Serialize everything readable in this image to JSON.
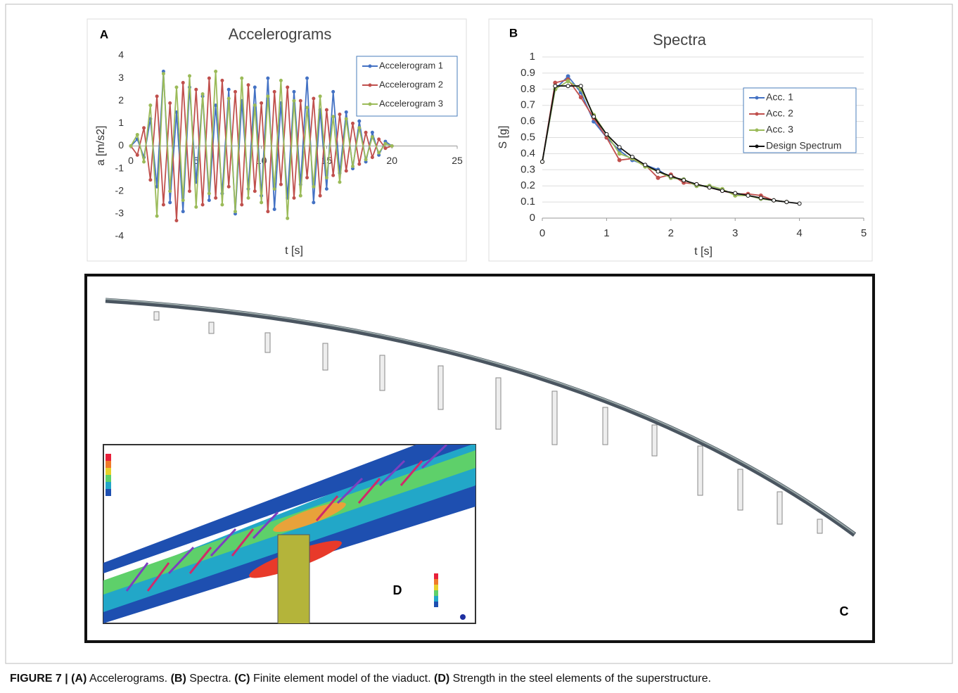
{
  "chart_data": [
    {
      "type": "line",
      "panel": "A",
      "title": "Accelerograms",
      "xlabel": "t    [s]",
      "ylabel": "a  [m/s2]",
      "x": [
        0,
        0.5,
        1,
        1.5,
        2,
        2.5,
        3,
        3.5,
        4,
        4.5,
        5,
        5.5,
        6,
        6.5,
        7,
        7.5,
        8,
        8.5,
        9,
        9.5,
        10,
        10.5,
        11,
        11.5,
        12,
        12.5,
        13,
        13.5,
        14,
        14.5,
        15,
        15.5,
        16,
        16.5,
        17,
        17.5,
        18,
        18.5,
        19,
        19.5,
        20
      ],
      "series": [
        {
          "name": "Accelerogram 1",
          "color": "#4472c4",
          "values": [
            0,
            0.3,
            -0.5,
            1.2,
            -1.8,
            3.3,
            -2.5,
            1.5,
            -2.9,
            2.6,
            -1.6,
            2.2,
            -2.4,
            1.8,
            -2.1,
            2.5,
            -3.0,
            2.0,
            -1.9,
            2.6,
            -2.2,
            3.0,
            -2.8,
            1.9,
            -2.3,
            2.4,
            -1.7,
            3.0,
            -2.5,
            1.6,
            -1.9,
            2.4,
            -1.2,
            1.5,
            -1.0,
            1.1,
            -0.7,
            0.6,
            -0.4,
            0.2,
            0
          ]
        },
        {
          "name": "Accelerogram 2",
          "color": "#c0504d",
          "values": [
            0,
            -0.4,
            0.8,
            -1.5,
            2.2,
            -2.6,
            1.9,
            -3.3,
            2.8,
            -2.0,
            2.5,
            -2.6,
            3.0,
            -2.3,
            2.9,
            -1.8,
            2.4,
            -2.6,
            2.7,
            -2.0,
            1.9,
            -2.9,
            2.4,
            -1.7,
            2.6,
            -2.3,
            2.0,
            -1.4,
            2.1,
            -2.2,
            1.6,
            -1.3,
            1.4,
            -1.1,
            1.0,
            -0.8,
            0.6,
            -0.5,
            0.3,
            -0.1,
            0
          ]
        },
        {
          "name": "Accelerogram 3",
          "color": "#9bbb59",
          "values": [
            0,
            0.5,
            -0.7,
            1.8,
            -3.1,
            3.2,
            -2.0,
            2.6,
            -2.4,
            3.1,
            -2.7,
            2.3,
            -2.1,
            3.3,
            -2.6,
            2.1,
            -2.9,
            3.0,
            -2.3,
            1.8,
            -2.5,
            2.2,
            -1.9,
            2.9,
            -3.2,
            2.0,
            -2.2,
            1.7,
            -1.8,
            2.2,
            -1.4,
            1.3,
            -1.6,
            1.2,
            -0.9,
            0.8,
            -0.6,
            0.4,
            -0.3,
            0.1,
            0
          ]
        }
      ],
      "xlim": [
        0,
        25
      ],
      "xticks": [
        0,
        5,
        10,
        15,
        20,
        25
      ],
      "ylim": [
        -4,
        4
      ],
      "yticks": [
        -4,
        -3,
        -2,
        -1,
        0,
        1,
        2,
        3,
        4
      ],
      "grid": false
    },
    {
      "type": "line",
      "panel": "B",
      "title": "Spectra",
      "xlabel": "t    [s]",
      "ylabel": "S   [g]",
      "x": [
        0,
        0.2,
        0.4,
        0.6,
        0.8,
        1,
        1.2,
        1.4,
        1.6,
        1.8,
        2,
        2.2,
        2.4,
        2.6,
        2.8,
        3,
        3.2,
        3.4,
        3.6,
        3.8,
        4
      ],
      "series": [
        {
          "name": "Acc. 1",
          "color": "#4472c4",
          "values": [
            0.35,
            0.8,
            0.88,
            0.78,
            0.6,
            0.5,
            0.42,
            0.36,
            0.33,
            0.3,
            0.25,
            0.24,
            0.2,
            0.2,
            0.17,
            0.15,
            0.14,
            0.12,
            0.11,
            0.1,
            null
          ]
        },
        {
          "name": "Acc. 2",
          "color": "#c0504d",
          "values": [
            0.35,
            0.84,
            0.86,
            0.75,
            0.62,
            0.5,
            0.36,
            0.37,
            0.33,
            0.25,
            0.27,
            0.22,
            0.21,
            0.19,
            0.17,
            0.15,
            0.15,
            0.14,
            0.11,
            0.1,
            null
          ]
        },
        {
          "name": "Acc. 3",
          "color": "#9bbb59",
          "values": [
            0.35,
            0.8,
            0.85,
            0.8,
            0.64,
            0.52,
            0.4,
            0.37,
            0.32,
            0.29,
            0.25,
            0.24,
            0.2,
            0.2,
            0.18,
            0.14,
            0.14,
            0.12,
            0.11,
            0.1,
            null
          ]
        },
        {
          "name": "Design Spectrum",
          "color": "#111111",
          "values": [
            0.35,
            0.82,
            0.82,
            0.82,
            0.63,
            0.52,
            0.44,
            0.38,
            0.33,
            0.29,
            0.26,
            0.235,
            0.21,
            0.19,
            0.17,
            0.155,
            0.14,
            0.125,
            0.11,
            0.1,
            0.09
          ]
        }
      ],
      "xlim": [
        0,
        5
      ],
      "xticks": [
        0,
        1,
        2,
        3,
        4,
        5
      ],
      "ylim": [
        0,
        1
      ],
      "yticks": [
        0,
        0.1,
        0.2,
        0.3,
        0.4,
        0.5,
        0.6,
        0.7,
        0.8,
        0.9,
        1
      ],
      "grid": true
    }
  ],
  "panel_c": {
    "label": "C"
  },
  "panel_d": {
    "label": "D"
  },
  "caption": {
    "figure": "FIGURE 7 |",
    "items": [
      {
        "tag": "(A)",
        "text": "Accelerograms."
      },
      {
        "tag": "(B)",
        "text": "Spectra."
      },
      {
        "tag": "(C)",
        "text": "Finite element model of the viaduct."
      },
      {
        "tag": "(D)",
        "text": "Strength in the steel elements of the superstructure."
      }
    ]
  }
}
